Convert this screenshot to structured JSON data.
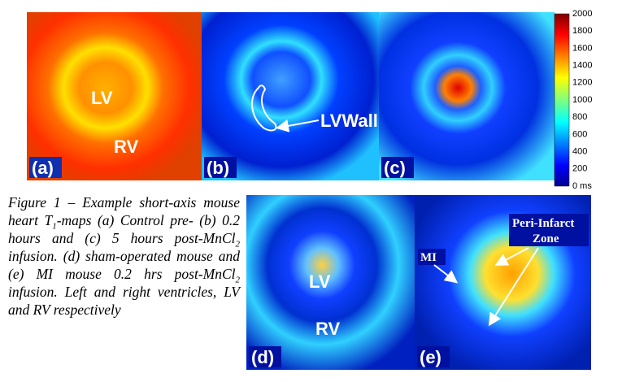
{
  "panels": [
    {
      "label": "(a)",
      "annotations": [
        "LV",
        "RV"
      ]
    },
    {
      "label": "(b)",
      "annotations": [
        "LVWall"
      ]
    },
    {
      "label": "(c)",
      "annotations": []
    },
    {
      "label": "(d)",
      "annotations": [
        "LV",
        "RV"
      ]
    },
    {
      "label": "(e)",
      "annotations": [
        "MI",
        "Peri-Infarct",
        "Zone"
      ]
    }
  ],
  "colorbar": {
    "labels": [
      "2000",
      "1800",
      "1600",
      "1400",
      "1200",
      "1000",
      "800",
      "600",
      "400",
      "200",
      "0 ms"
    ]
  },
  "caption": [
    "Figure 1 – Example short-axis mouse heart T",
    "1",
    "-maps (a) Control pre- (b) 0.2 hours and (c) 5 hours post-MnCl",
    "2",
    " infusion. (d) sham-operated mouse and (e) MI mouse 0.2 hrs post-MnCl",
    "2",
    " infusion. Left and right ventricles, LV and RV respectively"
  ]
}
